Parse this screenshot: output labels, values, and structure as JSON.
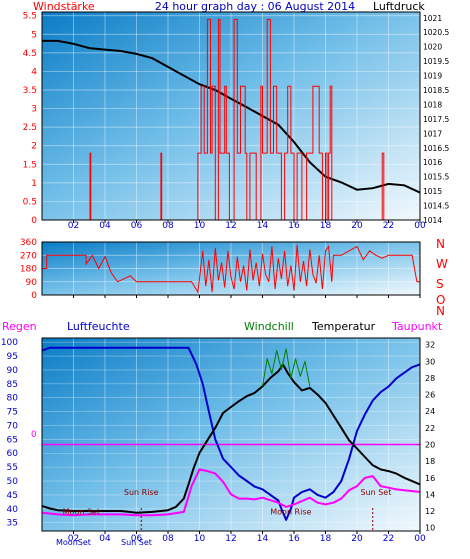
{
  "chart_data": [
    {
      "type": "line",
      "title": "24 hour graph day : 06 August 2014",
      "left_label": "Windstärke",
      "right_label": "Luftdruck",
      "x_ticks": [
        "02",
        "04",
        "06",
        "08",
        "10",
        "12",
        "14",
        "16",
        "18",
        "20",
        "22",
        "00"
      ],
      "y_left_ticks": [
        "0",
        "0.5",
        "1",
        "1.5",
        "2",
        "2.5",
        "3",
        "3.5",
        "4",
        "4.5",
        "5",
        "5.5"
      ],
      "y_right_ticks": [
        "1014",
        "1014.5",
        "1015",
        "1015.5",
        "1016",
        "1016.5",
        "1017",
        "1017.5",
        "1018",
        "1018.5",
        "1019",
        "1019.5",
        "1020",
        "1020.5",
        "1021"
      ],
      "ylim_left": [
        0,
        5.6
      ],
      "ylim_right": [
        1014,
        1021.2
      ],
      "series": [
        {
          "axis": "right",
          "color": "#000000",
          "x": [
            0,
            1,
            2,
            3,
            4,
            5,
            6,
            7,
            8,
            9,
            10,
            11,
            12,
            13,
            14,
            15,
            16,
            17,
            18,
            19,
            20,
            21,
            22,
            23,
            24
          ],
          "values": [
            1020.2,
            1020.2,
            1020.1,
            1019.95,
            1019.9,
            1019.85,
            1019.75,
            1019.6,
            1019.3,
            1019.0,
            1018.7,
            1018.5,
            1018.2,
            1017.9,
            1017.6,
            1017.3,
            1016.7,
            1016.0,
            1015.5,
            1015.3,
            1015.05,
            1015.1,
            1015.25,
            1015.2,
            1014.95
          ]
        },
        {
          "axis": "left",
          "color": "#ff0000",
          "x": [
            0,
            3.0,
            3.05,
            3.1,
            7.5,
            7.55,
            7.6,
            9.9,
            10.0,
            10.1,
            10.3,
            10.5,
            10.7,
            10.8,
            11.0,
            11.2,
            11.3,
            11.6,
            11.7,
            11.9,
            12.2,
            12.4,
            12.6,
            12.9,
            13.0,
            13.2,
            13.6,
            13.9,
            14.0,
            14.3,
            14.5,
            14.7,
            14.9,
            15.0,
            15.2,
            15.4,
            15.6,
            15.8,
            16.0,
            16.2,
            16.5,
            16.8,
            17.2,
            17.6,
            17.8,
            18.0,
            18.1,
            18.2,
            18.3,
            18.4,
            21.5,
            21.6,
            21.7,
            23.8,
            24.0
          ],
          "values": [
            0,
            0,
            1.8,
            0,
            0,
            1.8,
            0,
            1.8,
            1.8,
            3.6,
            1.8,
            5.4,
            1.8,
            3.6,
            0,
            5.4,
            1.8,
            3.6,
            1.8,
            0,
            5.4,
            1.8,
            3.6,
            1.8,
            0,
            1.8,
            0,
            3.6,
            1.8,
            5.4,
            1.8,
            3.6,
            1.8,
            1.8,
            0,
            1.8,
            3.6,
            1.8,
            0,
            1.8,
            0,
            1.8,
            3.6,
            1.8,
            0,
            1.8,
            0,
            1.8,
            3.6,
            0,
            0,
            1.8,
            0,
            0,
            0
          ]
        }
      ]
    },
    {
      "type": "line",
      "y_left_ticks": [
        "0",
        "90",
        "180",
        "270",
        "360"
      ],
      "direction_labels": [
        "N",
        "W",
        "S",
        "O",
        "N"
      ],
      "ylim": [
        0,
        360
      ],
      "series": [
        {
          "color": "#ff0000",
          "x": [
            0,
            0.3,
            0.3,
            2.8,
            2.8,
            3.2,
            3.6,
            4.0,
            4.4,
            4.8,
            5.2,
            5.6,
            6.0,
            6.5,
            7.0,
            7.5,
            8.0,
            8.5,
            9.0,
            9.5,
            9.9,
            10.2,
            10.4,
            10.6,
            10.8,
            11.0,
            11.2,
            11.4,
            11.6,
            11.8,
            12.0,
            12.2,
            12.4,
            12.6,
            12.8,
            13.0,
            13.2,
            13.4,
            13.6,
            13.8,
            14.0,
            14.2,
            14.4,
            14.6,
            14.8,
            15.0,
            15.2,
            15.4,
            15.6,
            15.8,
            16.0,
            16.2,
            16.4,
            16.6,
            16.8,
            17.0,
            17.2,
            17.4,
            17.6,
            17.8,
            18.0,
            18.2,
            18.4,
            18.5,
            19.0,
            19.5,
            20.0,
            20.4,
            20.8,
            21.2,
            21.6,
            22.0,
            22.5,
            23.0,
            23.5,
            23.8,
            24.0
          ],
          "values": [
            180,
            180,
            270,
            270,
            210,
            270,
            180,
            260,
            150,
            90,
            110,
            130,
            90,
            90,
            90,
            90,
            90,
            90,
            90,
            90,
            20,
            300,
            60,
            240,
            20,
            320,
            100,
            220,
            50,
            300,
            120,
            40,
            260,
            90,
            200,
            30,
            310,
            100,
            220,
            60,
            280,
            140,
            90,
            330,
            40,
            250,
            110,
            300,
            60,
            200,
            30,
            340,
            90,
            230,
            60,
            310,
            140,
            80,
            270,
            40,
            300,
            330,
            90,
            270,
            270,
            300,
            330,
            240,
            300,
            270,
            250,
            270,
            270,
            270,
            270,
            90,
            90
          ]
        }
      ]
    },
    {
      "type": "line",
      "top_labels": [
        "Regen",
        "Luftfeuchte",
        "Windchill",
        "Temperatur",
        "Taupunkt"
      ],
      "colors": {
        "regen": "#ff00ff",
        "luftfeuchte": "#0000cc",
        "windchill": "#008000",
        "temperatur": "#000000",
        "taupunkt": "#ff00ff"
      },
      "y_left_ticks": [
        "35",
        "40",
        "45",
        "50",
        "55",
        "60",
        "65",
        "70",
        "75",
        "80",
        "85",
        "90",
        "95",
        "100"
      ],
      "y_right_ticks": [
        "10",
        "12",
        "14",
        "16",
        "18",
        "20",
        "22",
        "24",
        "26",
        "28",
        "30",
        "32"
      ],
      "ylim_left": [
        32,
        101.5
      ],
      "ylim_right": [
        9.6,
        32.8
      ],
      "rain_axis_label": "0",
      "annotations": [
        {
          "text": "Moon Set",
          "x": 2.5,
          "y": 38,
          "color": "#880000"
        },
        {
          "text": "Sun Rise",
          "x": 6.3,
          "y": 45,
          "color": "#880000"
        },
        {
          "text": "Moon Rise",
          "x": 15.8,
          "y": 38,
          "color": "#880000"
        },
        {
          "text": "Sun Set",
          "x": 21.2,
          "y": 45,
          "color": "#880000"
        }
      ],
      "bottom_labels": [
        "MoonSet",
        "Sun Set"
      ],
      "series": [
        {
          "name": "Luftfeuchte",
          "axis": "left",
          "color": "#0000cc",
          "x": [
            0,
            0.5,
            2,
            4,
            6,
            8,
            9.3,
            9.8,
            10.2,
            10.6,
            11,
            11.5,
            12,
            12.5,
            13,
            13.5,
            14,
            14.5,
            15,
            15.2,
            15.5,
            15.8,
            16,
            16.5,
            17,
            17.5,
            18,
            18.5,
            19,
            19.5,
            20,
            20.5,
            21,
            21.5,
            22,
            22.5,
            23,
            23.5,
            24
          ],
          "values": [
            97,
            98,
            98,
            98,
            98,
            98,
            98,
            92,
            85,
            75,
            65,
            58,
            55,
            52,
            50,
            48,
            47,
            45,
            43,
            40,
            36,
            40,
            44,
            46,
            47,
            45,
            44,
            46,
            50,
            58,
            68,
            74,
            79,
            82,
            84,
            87,
            89,
            91,
            92
          ]
        },
        {
          "name": "Temperatur",
          "axis": "right",
          "color": "#000000",
          "x": [
            0,
            0.5,
            1,
            2,
            3,
            4,
            5,
            6,
            7,
            8,
            8.5,
            9,
            9.3,
            9.6,
            10,
            10.5,
            11,
            11.5,
            12,
            12.5,
            13,
            13.5,
            14,
            14.5,
            15,
            15.3,
            15.6,
            16,
            16.5,
            17,
            17.5,
            18,
            18.5,
            19,
            19.5,
            20,
            20.5,
            21,
            21.5,
            22,
            22.5,
            23,
            23.5,
            24
          ],
          "values": [
            12.6,
            12.3,
            12.1,
            12.0,
            12.0,
            12.0,
            12.0,
            11.8,
            11.9,
            12.1,
            12.5,
            13.5,
            15.2,
            17.0,
            19.0,
            20.5,
            22.0,
            23.8,
            24.5,
            25.2,
            25.8,
            26.2,
            27.0,
            28.0,
            28.8,
            29.6,
            28.6,
            27.5,
            26.5,
            26.8,
            26.0,
            25.0,
            23.5,
            22.0,
            20.5,
            19.5,
            18.5,
            17.5,
            17.0,
            16.8,
            16.5,
            16.0,
            15.6,
            15.2
          ]
        },
        {
          "name": "Windchill",
          "axis": "right",
          "color": "#008000",
          "x": [
            14,
            14.3,
            14.6,
            14.9,
            15.2,
            15.5,
            15.8,
            16.1,
            16.4,
            16.7,
            17
          ],
          "values": [
            27.0,
            30.3,
            28.5,
            31.3,
            29.0,
            31.5,
            28.0,
            30.3,
            28.2,
            30.0,
            27.0
          ]
        },
        {
          "name": "Taupunkt",
          "axis": "right",
          "color": "#ff00ff",
          "x": [
            0,
            1,
            2,
            3,
            4,
            5,
            6,
            7,
            8,
            9,
            9.5,
            10,
            10.5,
            11,
            11.5,
            12,
            12.5,
            13,
            13.5,
            14,
            14.5,
            15,
            15.5,
            16,
            16.5,
            17,
            17.5,
            18,
            18.5,
            19,
            19.5,
            20,
            20.5,
            21,
            21.5,
            22,
            22.5,
            23,
            23.5,
            24
          ],
          "values": [
            11.8,
            11.6,
            11.5,
            11.6,
            11.6,
            11.6,
            11.5,
            11.5,
            11.6,
            11.9,
            15.0,
            17.0,
            16.8,
            16.5,
            15.5,
            14.0,
            13.5,
            13.5,
            13.4,
            13.6,
            13.3,
            13.0,
            12.5,
            12.8,
            13.2,
            13.6,
            13.0,
            12.8,
            13.0,
            13.5,
            14.5,
            15.0,
            16.0,
            16.2,
            15.0,
            14.8,
            14.6,
            14.5,
            14.4,
            14.3
          ]
        }
      ]
    }
  ]
}
